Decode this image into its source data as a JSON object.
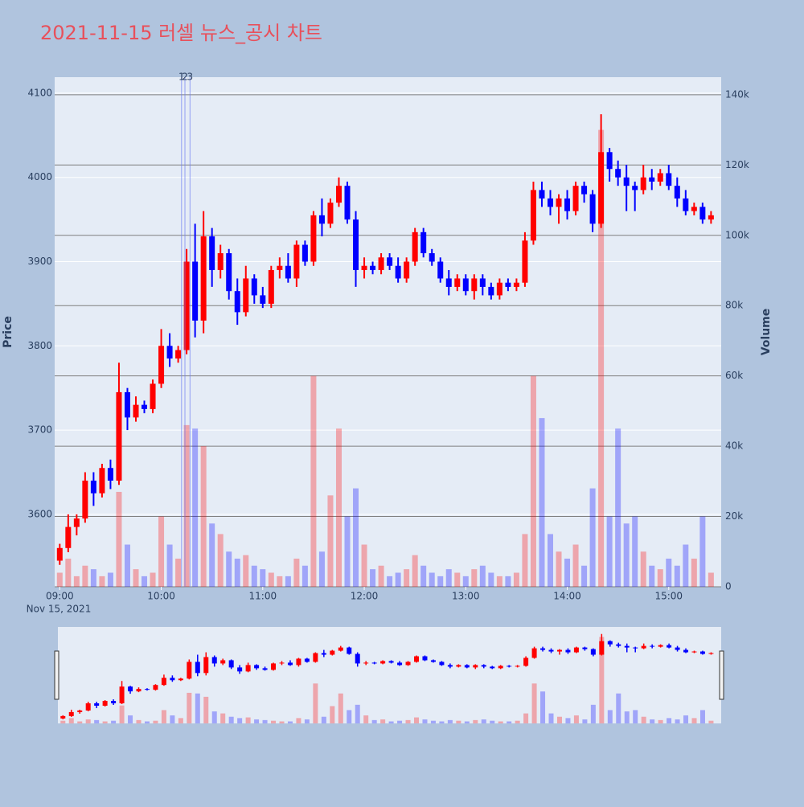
{
  "chart_data": {
    "type": "candlestick",
    "title": "2021-11-15 러셀 뉴스_공시 차트",
    "y_label": "Price",
    "y2_label": "Volume",
    "date_label": "Nov 15, 2021",
    "increasing_color": "#ff0000",
    "decreasing_color": "#0000ff",
    "grid": true,
    "xlim": [
      "08:57",
      "15:31"
    ],
    "xticks": [
      "09:00",
      "10:00",
      "11:00",
      "12:00",
      "13:00",
      "14:00",
      "15:00"
    ],
    "ylim": [
      3514,
      4119
    ],
    "yticks": [
      3600,
      3700,
      3800,
      3900,
      4000,
      4100
    ],
    "y2lim": [
      0,
      145000
    ],
    "y2ticks": [
      0,
      {
        "value": 20000,
        "label": "20k"
      },
      {
        "value": 40000,
        "label": "40k"
      },
      {
        "value": 60000,
        "label": "60k"
      },
      {
        "value": 80000,
        "label": "80k"
      },
      {
        "value": 100000,
        "label": "100k"
      },
      {
        "value": 120000,
        "label": "120k"
      },
      {
        "value": 140000,
        "label": "140k"
      }
    ],
    "annotations": [
      {
        "x": "10:12",
        "label": "1"
      },
      {
        "x": "10:14",
        "label": "2"
      },
      {
        "x": "10:17",
        "label": "3"
      }
    ],
    "x": [
      "09:00",
      "09:05",
      "09:10",
      "09:15",
      "09:20",
      "09:25",
      "09:30",
      "09:35",
      "09:40",
      "09:45",
      "09:50",
      "09:55",
      "10:00",
      "10:05",
      "10:10",
      "10:15",
      "10:20",
      "10:25",
      "10:30",
      "10:35",
      "10:40",
      "10:45",
      "10:50",
      "10:55",
      "11:00",
      "11:05",
      "11:10",
      "11:15",
      "11:20",
      "11:25",
      "11:30",
      "11:35",
      "11:40",
      "11:45",
      "11:50",
      "11:55",
      "12:00",
      "12:05",
      "12:10",
      "12:15",
      "12:20",
      "12:25",
      "12:30",
      "12:35",
      "12:40",
      "12:45",
      "12:50",
      "12:55",
      "13:00",
      "13:05",
      "13:10",
      "13:15",
      "13:20",
      "13:25",
      "13:30",
      "13:35",
      "13:40",
      "13:45",
      "13:50",
      "13:55",
      "14:00",
      "14:05",
      "14:10",
      "14:15",
      "14:20",
      "14:25",
      "14:30",
      "14:35",
      "14:40",
      "14:45",
      "14:50",
      "14:55",
      "15:00",
      "15:05",
      "15:10",
      "15:15",
      "15:20",
      "15:25"
    ],
    "open": [
      3545,
      3560,
      3585,
      3595,
      3640,
      3625,
      3655,
      3640,
      3745,
      3715,
      3730,
      3725,
      3755,
      3800,
      3785,
      3795,
      3900,
      3830,
      3930,
      3890,
      3910,
      3865,
      3840,
      3880,
      3860,
      3850,
      3890,
      3895,
      3880,
      3920,
      3900,
      3955,
      3945,
      3970,
      3990,
      3950,
      3890,
      3895,
      3890,
      3905,
      3895,
      3880,
      3900,
      3935,
      3910,
      3900,
      3880,
      3870,
      3880,
      3865,
      3880,
      3870,
      3860,
      3875,
      3870,
      3875,
      3925,
      3985,
      3975,
      3965,
      3975,
      3960,
      3990,
      3980,
      3945,
      4030,
      4010,
      4000,
      3990,
      3985,
      4000,
      3995,
      4005,
      3990,
      3975,
      3960,
      3965,
      3950
    ],
    "high": [
      3565,
      3600,
      3600,
      3650,
      3650,
      3660,
      3665,
      3780,
      3750,
      3740,
      3735,
      3760,
      3820,
      3815,
      3800,
      3915,
      3945,
      3960,
      3940,
      3920,
      3915,
      3880,
      3895,
      3885,
      3870,
      3895,
      3905,
      3910,
      3925,
      3925,
      3960,
      3975,
      3975,
      4000,
      3995,
      3960,
      3905,
      3900,
      3910,
      3910,
      3905,
      3905,
      3940,
      3940,
      3915,
      3905,
      3890,
      3885,
      3885,
      3885,
      3885,
      3875,
      3880,
      3880,
      3880,
      3935,
      3995,
      3995,
      3985,
      3980,
      3985,
      3995,
      3995,
      3985,
      4075,
      4035,
      4020,
      4015,
      3995,
      4015,
      4010,
      4010,
      4015,
      4000,
      3985,
      3970,
      3970,
      3960
    ],
    "low": [
      3540,
      3555,
      3575,
      3590,
      3610,
      3620,
      3630,
      3635,
      3700,
      3710,
      3720,
      3720,
      3750,
      3775,
      3780,
      3790,
      3810,
      3815,
      3870,
      3880,
      3855,
      3825,
      3835,
      3850,
      3845,
      3845,
      3880,
      3875,
      3870,
      3895,
      3895,
      3930,
      3940,
      3965,
      3945,
      3870,
      3880,
      3885,
      3885,
      3890,
      3875,
      3875,
      3895,
      3905,
      3895,
      3875,
      3860,
      3865,
      3860,
      3855,
      3860,
      3855,
      3855,
      3865,
      3865,
      3870,
      3920,
      3965,
      3955,
      3945,
      3950,
      3955,
      3970,
      3935,
      3940,
      3995,
      3990,
      3960,
      3960,
      3980,
      3985,
      3990,
      3985,
      3965,
      3955,
      3955,
      3945,
      3945
    ],
    "close": [
      3560,
      3585,
      3595,
      3640,
      3625,
      3655,
      3640,
      3745,
      3715,
      3730,
      3725,
      3755,
      3800,
      3785,
      3795,
      3900,
      3830,
      3930,
      3890,
      3910,
      3865,
      3840,
      3880,
      3860,
      3850,
      3890,
      3895,
      3880,
      3920,
      3900,
      3955,
      3945,
      3970,
      3990,
      3950,
      3890,
      3895,
      3890,
      3905,
      3895,
      3880,
      3900,
      3935,
      3910,
      3900,
      3880,
      3870,
      3880,
      3865,
      3880,
      3870,
      3860,
      3875,
      3870,
      3875,
      3925,
      3985,
      3975,
      3965,
      3975,
      3960,
      3990,
      3980,
      3945,
      4030,
      4010,
      4000,
      3990,
      3985,
      4000,
      3995,
      4005,
      3990,
      3975,
      3960,
      3965,
      3950,
      3955
    ],
    "volume": [
      4000,
      8000,
      3000,
      6000,
      5000,
      3000,
      4000,
      27000,
      12000,
      5000,
      3000,
      4000,
      20000,
      12000,
      8000,
      46000,
      45000,
      40000,
      18000,
      15000,
      10000,
      8000,
      9000,
      6000,
      5000,
      4000,
      3000,
      3000,
      8000,
      6000,
      60000,
      10000,
      26000,
      45000,
      20000,
      28000,
      12000,
      5000,
      6000,
      3000,
      4000,
      5000,
      9000,
      6000,
      4000,
      3000,
      5000,
      4000,
      3000,
      5000,
      6000,
      4000,
      3000,
      3000,
      4000,
      15000,
      60000,
      48000,
      15000,
      10000,
      8000,
      12000,
      6000,
      28000,
      130000,
      20000,
      45000,
      18000,
      20000,
      10000,
      6000,
      5000,
      8000,
      6000,
      12000,
      8000,
      20000,
      4000
    ]
  }
}
